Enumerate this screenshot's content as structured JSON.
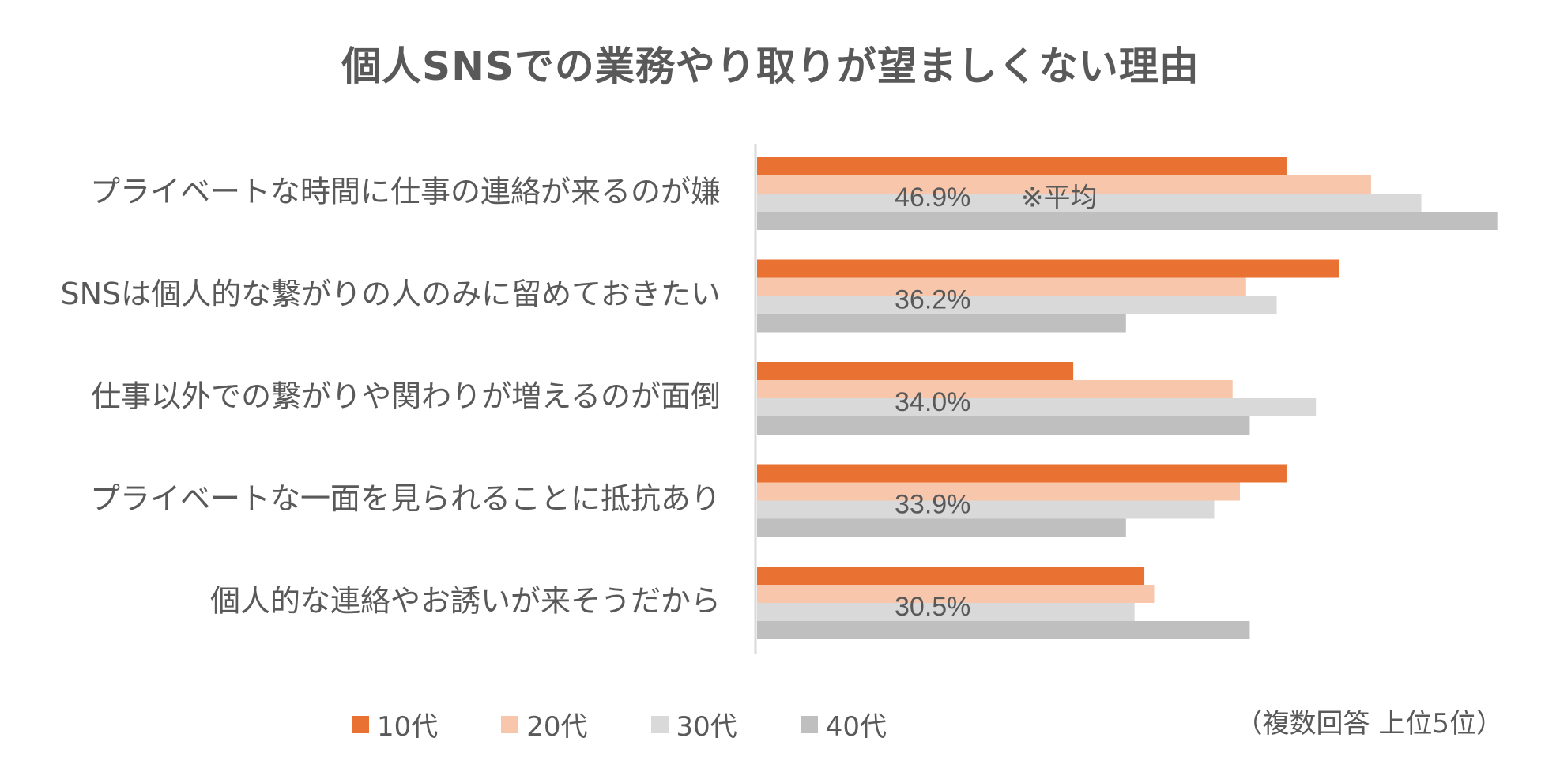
{
  "chart_data": {
    "type": "bar",
    "orientation": "horizontal",
    "title": "個人SNSでの業務やり取りが望ましくない理由",
    "categories": [
      "プライベートな時間に仕事の連絡が来るのが嫌",
      "SNSは個人的な繋がりの人のみに留めておきたい",
      "仕事以外での繋がりや関わりが増えるのが面倒",
      "プライベートな一面を見られることに抵抗あり",
      "個人的な連絡やお誘いが来そうだから"
    ],
    "averages": [
      "46.9%",
      "36.2%",
      "34.0%",
      "33.9%",
      "30.5%"
    ],
    "average_note": "※平均",
    "series": [
      {
        "name": "10代",
        "color": "#E97132",
        "values": [
          43.2,
          47.5,
          25.8,
          43.2,
          31.6
        ]
      },
      {
        "name": "20代",
        "color": "#F7C6AB",
        "values": [
          50.1,
          39.9,
          38.8,
          39.4,
          32.4
        ]
      },
      {
        "name": "30代",
        "color": "#D9D9D9",
        "values": [
          54.2,
          42.4,
          45.6,
          37.3,
          30.8
        ]
      },
      {
        "name": "40代",
        "color": "#BFBFBF",
        "values": [
          60.4,
          30.1,
          40.2,
          30.1,
          40.2
        ]
      }
    ],
    "xlim": [
      0,
      61
    ],
    "legend_position": "bottom",
    "footnote": "（複数回答 上位5位）"
  }
}
